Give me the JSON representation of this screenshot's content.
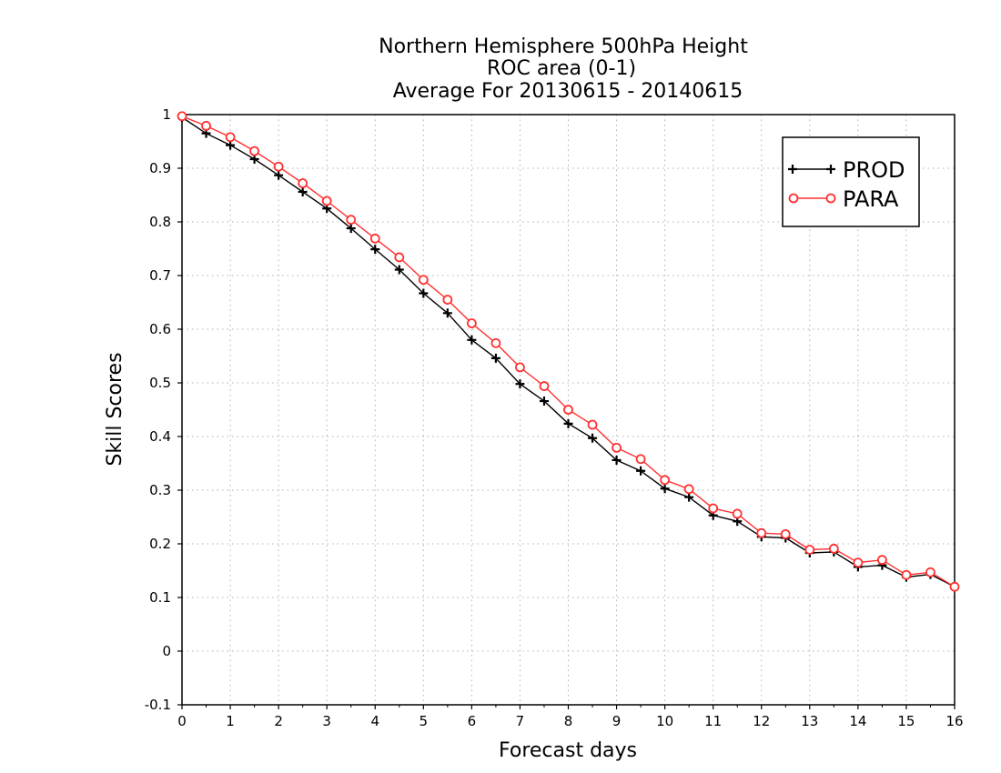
{
  "chart_data": {
    "type": "line",
    "title": [
      "Northern Hemisphere 500hPa Height",
      "ROC area (0-1)",
      "Average For 20130615 - 20140615"
    ],
    "xlabel": "Forecast days",
    "ylabel": "Skill Scores",
    "xlim": [
      0,
      16
    ],
    "ylim": [
      -0.1,
      1
    ],
    "xticks": [
      "0",
      "1",
      "2",
      "3",
      "4",
      "5",
      "6",
      "7",
      "8",
      "9",
      "10",
      "11",
      "12",
      "13",
      "14",
      "15",
      "16"
    ],
    "yticks": [
      "-0.1",
      "0",
      "0.1",
      "0.2",
      "0.3",
      "0.4",
      "0.5",
      "0.6",
      "0.7",
      "0.8",
      "0.9",
      "1"
    ],
    "grid": true,
    "legend_position": "top-right",
    "x": [
      0,
      0.5,
      1,
      1.5,
      2,
      2.5,
      3,
      3.5,
      4,
      4.5,
      5,
      5.5,
      6,
      6.5,
      7,
      7.5,
      8,
      8.5,
      9,
      9.5,
      10,
      10.5,
      11,
      11.5,
      12,
      12.5,
      13,
      13.5,
      14,
      14.5,
      15,
      15.5,
      16
    ],
    "series": [
      {
        "name": "PROD",
        "color": "#000000",
        "marker": "plus",
        "values": [
          0.995,
          0.965,
          0.943,
          0.917,
          0.887,
          0.856,
          0.825,
          0.788,
          0.749,
          0.711,
          0.667,
          0.63,
          0.58,
          0.546,
          0.498,
          0.466,
          0.424,
          0.397,
          0.356,
          0.336,
          0.303,
          0.287,
          0.253,
          0.242,
          0.213,
          0.211,
          0.183,
          0.185,
          0.157,
          0.16,
          0.138,
          0.143,
          0.12
        ]
      },
      {
        "name": "PARA",
        "color": "#ff3030",
        "marker": "circle",
        "values": [
          0.997,
          0.979,
          0.958,
          0.932,
          0.903,
          0.872,
          0.839,
          0.804,
          0.769,
          0.734,
          0.692,
          0.655,
          0.611,
          0.574,
          0.529,
          0.494,
          0.45,
          0.422,
          0.379,
          0.358,
          0.319,
          0.302,
          0.266,
          0.256,
          0.22,
          0.218,
          0.189,
          0.191,
          0.165,
          0.17,
          0.142,
          0.147,
          0.12
        ]
      }
    ]
  }
}
